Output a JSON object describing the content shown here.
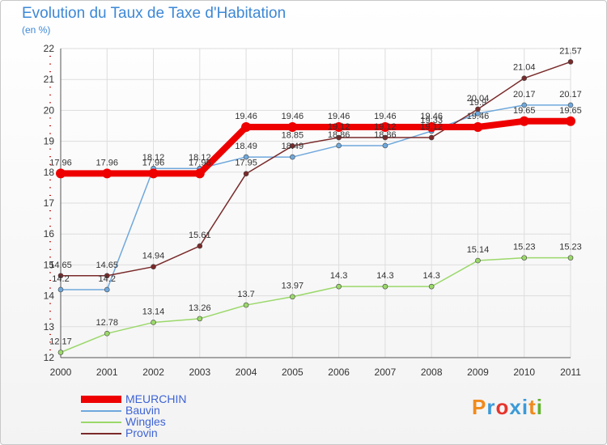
{
  "title": "Evolution du Taux de Taxe d'Habitation",
  "subtitle": "(en %)",
  "logo": {
    "text": "Proxiti",
    "letters": [
      {
        "ch": "P",
        "color": "#f08a1c"
      },
      {
        "ch": "r",
        "color": "#3c9ad8"
      },
      {
        "ch": "o",
        "color": "#e5352c"
      },
      {
        "ch": "x",
        "color": "#3c9ad8"
      },
      {
        "ch": "i",
        "color": "#3c9ad8"
      },
      {
        "ch": "t",
        "color": "#f08a1c"
      },
      {
        "ch": "i",
        "color": "#62b32e"
      }
    ]
  },
  "chart_data": {
    "type": "line",
    "title": "Evolution du Taux de Taxe d'Habitation",
    "ylabel": "(en %)",
    "categories": [
      "2000",
      "2001",
      "2002",
      "2003",
      "2004",
      "2005",
      "2006",
      "2007",
      "2008",
      "2009",
      "2010",
      "2011"
    ],
    "ylim": [
      12,
      22
    ],
    "yticks": [
      "12",
      "13",
      "14",
      "15",
      "16",
      "17",
      "18",
      "19",
      "20",
      "21",
      "22"
    ],
    "grid": true,
    "legend_position": "bottom-left",
    "series": [
      {
        "name": "MEURCHIN",
        "color": "#ee0000",
        "labelColor": "#333333",
        "bold": true,
        "values": [
          17.96,
          17.96,
          17.96,
          17.96,
          19.46,
          19.46,
          19.46,
          19.46,
          19.46,
          19.46,
          19.65,
          19.65
        ],
        "labels": [
          "17.96",
          "17.96",
          "17.96",
          "17.96",
          "19.46",
          "19.46",
          "19.46",
          "19.46",
          "19.46",
          "19.46",
          "19.65",
          "19.65"
        ]
      },
      {
        "name": "Bauvin",
        "color": "#6fa8dc",
        "labelColor": "#333333",
        "bold": false,
        "values": [
          14.2,
          14.2,
          18.12,
          18.12,
          18.49,
          18.49,
          18.86,
          18.86,
          19.33,
          19.9,
          20.17,
          20.17
        ],
        "labels": [
          "14.2",
          "14.2",
          "18.12",
          "18.12",
          "18.49",
          "18.49",
          "18.86",
          "18.86",
          "19.33",
          "19.9",
          "20.17",
          "20.17"
        ]
      },
      {
        "name": "Wingles",
        "color": "#9bd86a",
        "labelColor": "#333333",
        "bold": false,
        "values": [
          12.17,
          12.78,
          13.14,
          13.26,
          13.7,
          13.97,
          14.3,
          14.3,
          14.3,
          15.14,
          15.23,
          15.23
        ],
        "labels": [
          "12.17",
          "12.78",
          "13.14",
          "13.26",
          "13.7",
          "13.97",
          "14.3",
          "14.3",
          "14.3",
          "15.14",
          "15.23",
          "15.23"
        ]
      },
      {
        "name": "Provin",
        "color": "#7a2a2a",
        "labelColor": "#333333",
        "bold": false,
        "values": [
          14.65,
          14.65,
          14.94,
          15.61,
          17.95,
          18.85,
          19.12,
          19.12,
          19.12,
          20.04,
          21.04,
          21.57
        ],
        "labels": [
          "14.65",
          "14.65",
          "14.94",
          "15.61",
          "17.95",
          "18.85",
          "19.12",
          "19.12",
          "19.12",
          "20.04",
          "21.04",
          "21.57"
        ]
      }
    ]
  }
}
